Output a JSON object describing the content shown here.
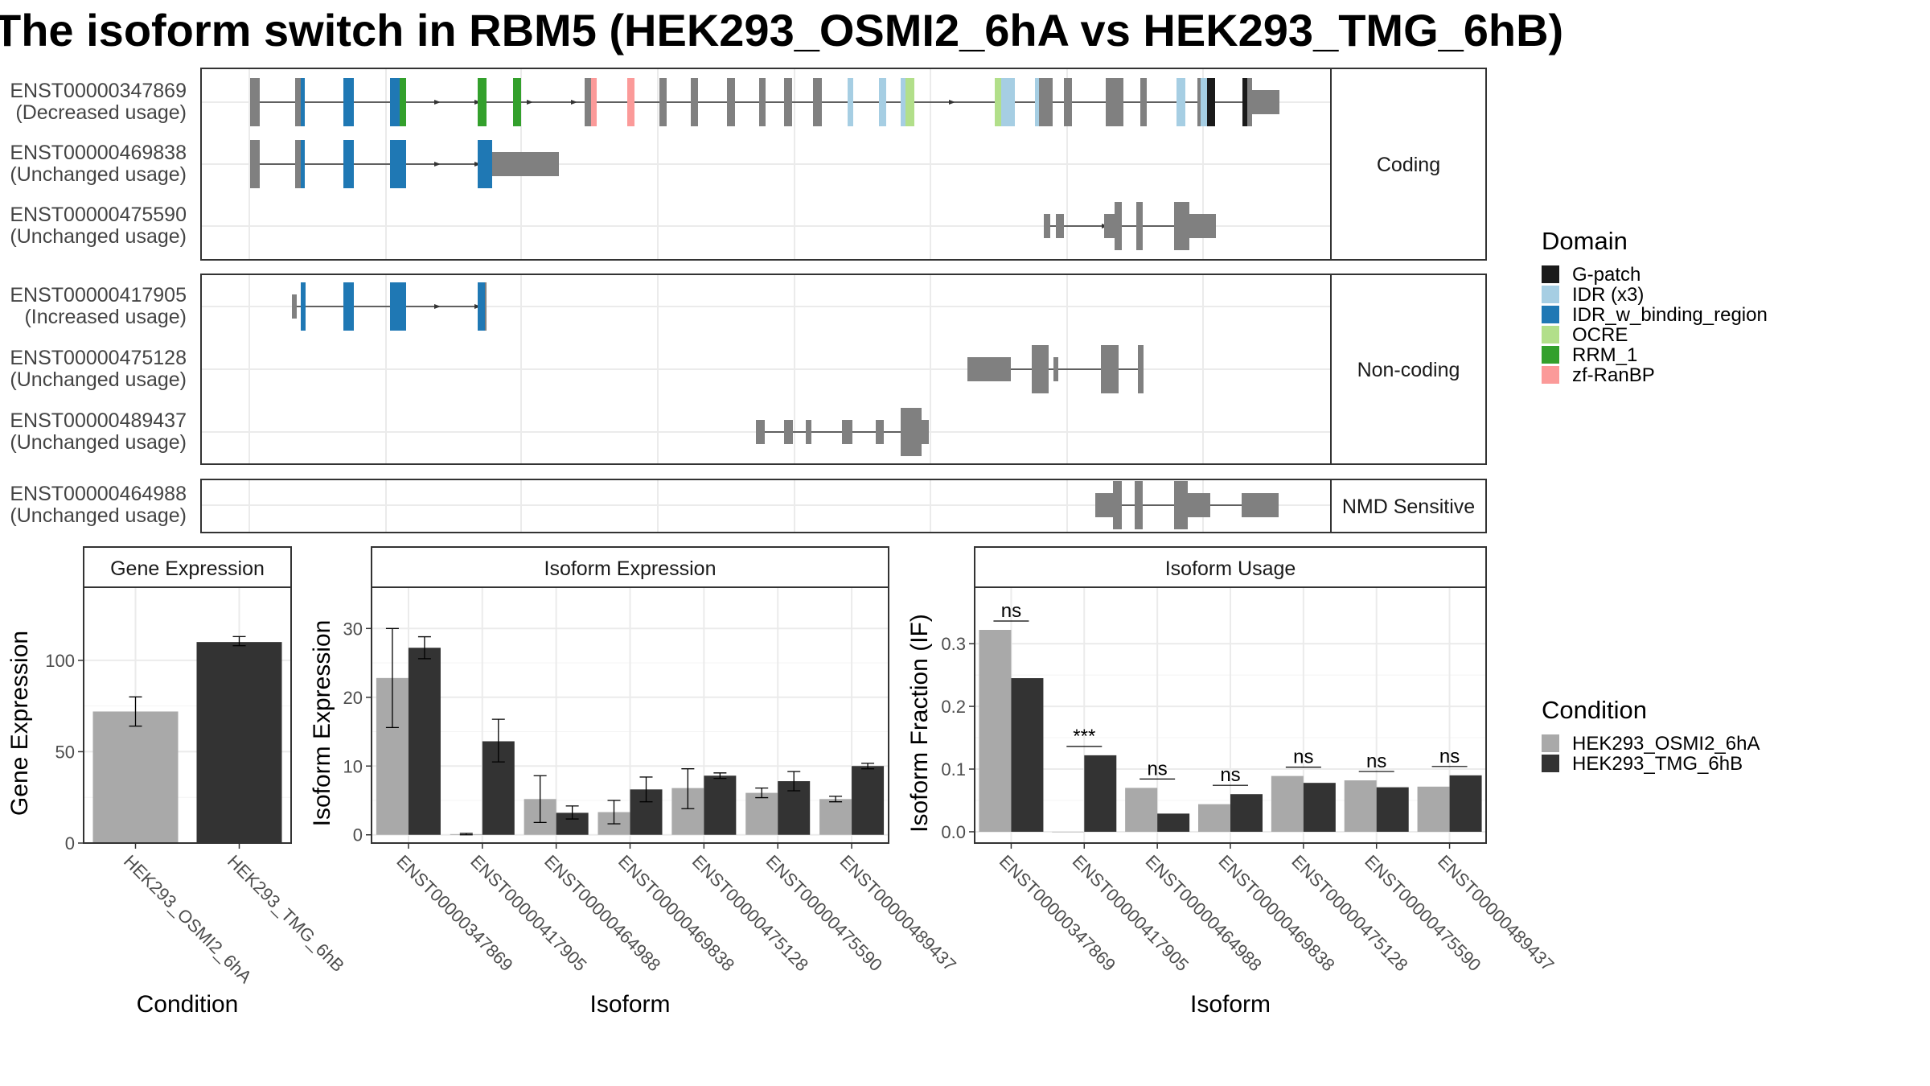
{
  "title": "The isoform switch in RBM5 (HEK293_OSMI2_6hA vs HEK293_TMG_6hB)",
  "colors": {
    "cond_a": "#a9a9a9",
    "cond_b": "#333333",
    "exon_default": "#808080",
    "panel_border": "#333333",
    "grid": "#ebebeb"
  },
  "domain_legend": {
    "title": "Domain",
    "items": [
      {
        "label": "G-patch",
        "color": "#1a1a1a"
      },
      {
        "label": "IDR (x3)",
        "color": "#a6cee3"
      },
      {
        "label": "IDR_w_binding_region",
        "color": "#1f78b4"
      },
      {
        "label": "OCRE",
        "color": "#b2df8a"
      },
      {
        "label": "RRM_1",
        "color": "#33a02c"
      },
      {
        "label": "zf-RanBP",
        "color": "#fb9a99"
      }
    ]
  },
  "condition_legend": {
    "title": "Condition",
    "items": [
      {
        "label": "HEK293_OSMI2_6hA",
        "color": "#a9a9a9"
      },
      {
        "label": "HEK293_TMG_6hB",
        "color": "#333333"
      }
    ]
  },
  "structure": {
    "groups": [
      {
        "label": "Coding",
        "transcripts": [
          {
            "id": "ENST00000347869",
            "usage": "(Decreased usage)"
          },
          {
            "id": "ENST00000469838",
            "usage": "(Unchanged usage)"
          },
          {
            "id": "ENST00000475590",
            "usage": "(Unchanged usage)"
          }
        ]
      },
      {
        "label": "Non-coding",
        "transcripts": [
          {
            "id": "ENST00000417905",
            "usage": "(Increased usage)"
          },
          {
            "id": "ENST00000475128",
            "usage": "(Unchanged usage)"
          },
          {
            "id": "ENST00000489437",
            "usage": "(Unchanged usage)"
          }
        ]
      },
      {
        "label": "NMD Sensitive",
        "transcripts": [
          {
            "id": "ENST00000464988",
            "usage": "(Unchanged usage)"
          }
        ]
      }
    ]
  },
  "chart_data": [
    {
      "type": "bar",
      "title": "Gene Expression",
      "xlabel": "Condition",
      "ylabel": "Gene Expression",
      "categories": [
        "HEK293_OSMI2_6hA",
        "HEK293_TMG_6hB"
      ],
      "values": [
        72,
        110
      ],
      "error": [
        [
          64,
          80
        ],
        [
          108,
          113
        ]
      ],
      "ylim": [
        0,
        140
      ],
      "yticks": [
        0,
        50,
        100
      ]
    },
    {
      "type": "bar",
      "title": "Isoform Expression",
      "xlabel": "Isoform",
      "ylabel": "Isoform Expression",
      "categories": [
        "ENST00000347869",
        "ENST00000417905",
        "ENST00000464988",
        "ENST00000469838",
        "ENST00000475128",
        "ENST00000475590",
        "ENST00000489437"
      ],
      "series": [
        {
          "name": "HEK293_OSMI2_6hA",
          "values": [
            22.8,
            0.1,
            5.2,
            3.3,
            6.8,
            6.1,
            5.2
          ],
          "error": [
            [
              15.6,
              30.0
            ],
            [
              0.0,
              0.2
            ],
            [
              1.8,
              8.6
            ],
            [
              1.6,
              5.0
            ],
            [
              3.8,
              9.6
            ],
            [
              5.4,
              6.8
            ],
            [
              4.8,
              5.6
            ]
          ]
        },
        {
          "name": "HEK293_TMG_6hB",
          "values": [
            27.2,
            13.6,
            3.2,
            6.6,
            8.6,
            7.8,
            10.0
          ],
          "error": [
            [
              25.6,
              28.8
            ],
            [
              10.6,
              16.8
            ],
            [
              2.3,
              4.2
            ],
            [
              4.8,
              8.4
            ],
            [
              8.2,
              9.0
            ],
            [
              6.4,
              9.2
            ],
            [
              9.6,
              10.4
            ]
          ]
        }
      ],
      "ylim": [
        -1.2,
        36
      ],
      "yticks": [
        0,
        10,
        20,
        30
      ]
    },
    {
      "type": "bar",
      "title": "Isoform Usage",
      "xlabel": "Isoform",
      "ylabel": "Isoform Fraction (IF)",
      "categories": [
        "ENST00000347869",
        "ENST00000417905",
        "ENST00000464988",
        "ENST00000469838",
        "ENST00000475128",
        "ENST00000475590",
        "ENST00000489437"
      ],
      "series": [
        {
          "name": "HEK293_OSMI2_6hA",
          "values": [
            0.322,
            0.0,
            0.07,
            0.044,
            0.089,
            0.082,
            0.072
          ]
        },
        {
          "name": "HEK293_TMG_6hB",
          "values": [
            0.245,
            0.122,
            0.029,
            0.06,
            0.078,
            0.071,
            0.09
          ]
        }
      ],
      "significance": [
        "ns",
        "***",
        "ns",
        "ns",
        "ns",
        "ns",
        "ns"
      ],
      "ylim": [
        -0.018,
        0.39
      ],
      "yticks": [
        "0.0",
        "0.1",
        "0.2",
        "0.3"
      ]
    }
  ]
}
